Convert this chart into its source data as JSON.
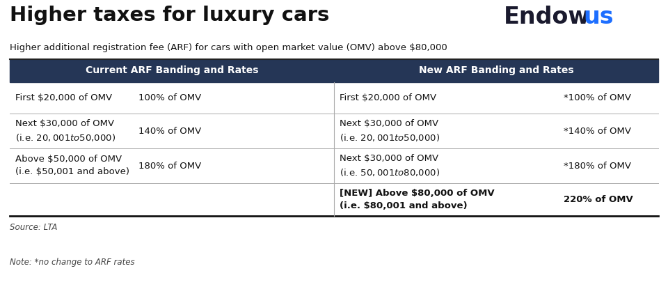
{
  "title": "Higher taxes for luxury cars",
  "subtitle": "Higher additional registration fee (ARF) for cars with open market value (OMV) above $80,000",
  "logo_text_black": "Endow",
  "logo_text_blue": "us",
  "header_left": "Current ARF Banding and Rates",
  "header_right": "New ARF Banding and Rates",
  "header_bg": "#253656",
  "header_fg": "#ffffff",
  "source": "Source: LTA",
  "note": "Note: *no change to ARF rates",
  "bg_color": "#ffffff",
  "rows": [
    {
      "left_band": "First $20,000 of OMV",
      "left_rate": "100% of OMV",
      "right_band": "First $20,000 of OMV",
      "right_rate": "*100% of OMV",
      "bold": false
    },
    {
      "left_band": "Next $30,000 of OMV\n(i.e. $20,001 to $50,000)",
      "left_rate": "140% of OMV",
      "right_band": "Next $30,000 of OMV\n(i.e. $20,001 to $50,000)",
      "right_rate": "*140% of OMV",
      "bold": false
    },
    {
      "left_band": "Above $50,000 of OMV\n(i.e. $50,001 and above)",
      "left_rate": "180% of OMV",
      "right_band": "Next $30,000 of OMV\n(i.e. $50,001 to $80,000)",
      "right_rate": "*180% of OMV",
      "bold": false
    },
    {
      "left_band": "",
      "left_rate": "",
      "right_band": "[NEW] Above $80,000 of OMV\n(i.e. $80,001 and above)",
      "right_rate": "220% of OMV",
      "bold": true
    }
  ]
}
